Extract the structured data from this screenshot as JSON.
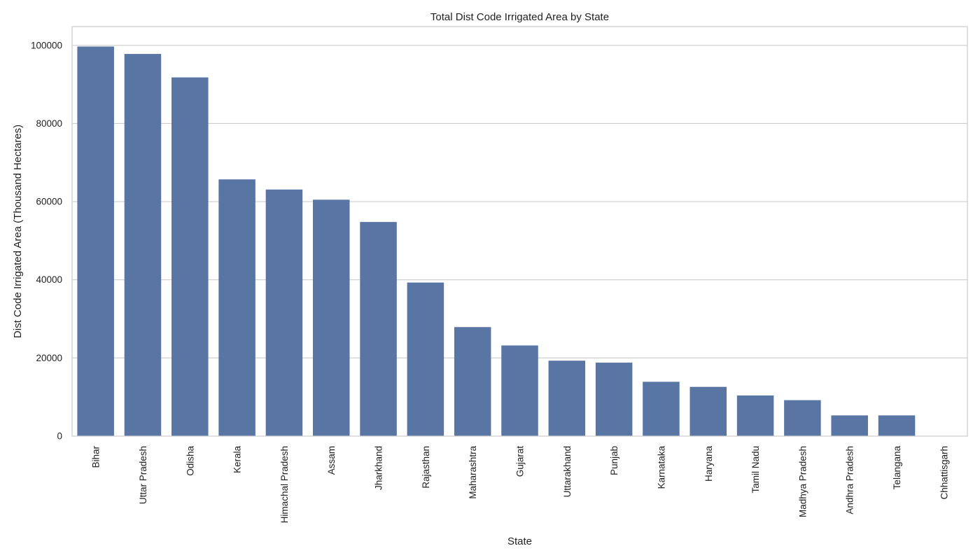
{
  "chart_data": {
    "type": "bar",
    "title": "Total Dist Code Irrigated Area by State",
    "xlabel": "State",
    "ylabel": "Dist Code Irrigated Area (Thousand Hectares)",
    "categories": [
      "Bihar",
      "Uttar Pradesh",
      "Odisha",
      "Kerala",
      "Himachal Pradesh",
      "Assam",
      "Jharkhand",
      "Rajasthan",
      "Maharashtra",
      "Gujarat",
      "Uttarakhand",
      "Punjab",
      "Karnataka",
      "Haryana",
      "Tamil Nadu",
      "Madhya Pradesh",
      "Andhra Pradesh",
      "Telangana",
      "Chhattisgarh"
    ],
    "values": [
      99700,
      97800,
      91800,
      65700,
      63100,
      60500,
      54800,
      39300,
      27900,
      23200,
      19300,
      18800,
      13900,
      12600,
      10400,
      9200,
      5300,
      5300,
      0
    ],
    "ylim": [
      0,
      104800
    ],
    "yticks": [
      0,
      20000,
      40000,
      60000,
      80000,
      100000
    ],
    "grid": true,
    "bar_color": "#5875a4",
    "grid_color": "#cccccc",
    "frame_color": "#cccccc"
  }
}
